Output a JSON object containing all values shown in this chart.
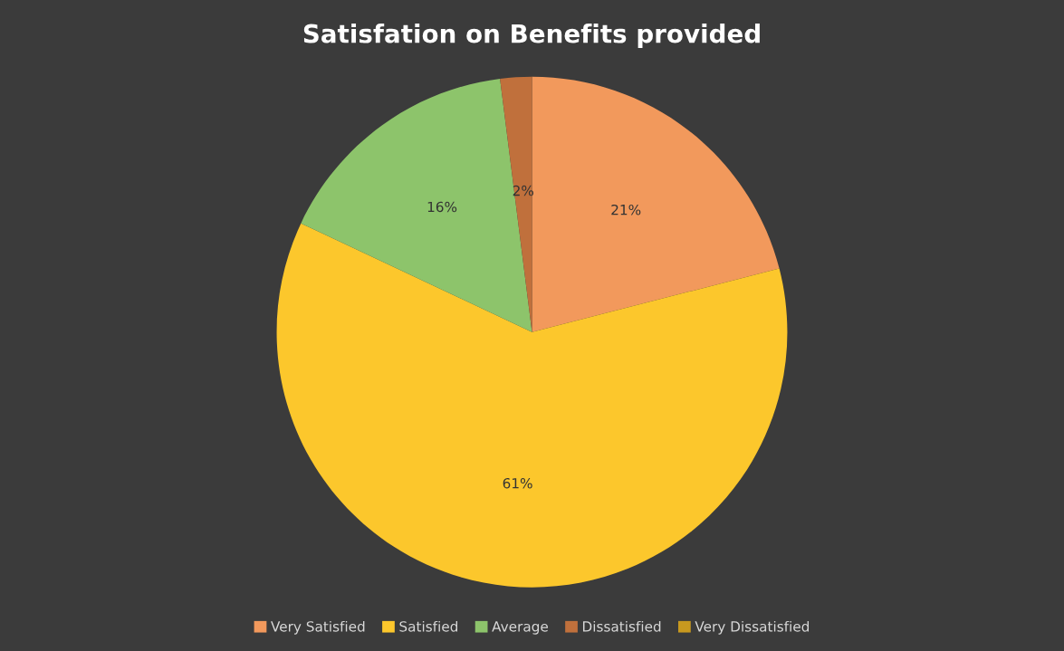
{
  "chart_data": {
    "type": "pie",
    "title": "Satisfation on Benefits provided",
    "categories": [
      "Very Satisfied",
      "Satisfied",
      "Average",
      "Dissatisfied",
      "Very Dissatisfied"
    ],
    "values": [
      21,
      61,
      16,
      2,
      0
    ],
    "value_labels": [
      "21%",
      "61%",
      "16%",
      "2%",
      null
    ],
    "colors": [
      "#f2995c",
      "#fcc72c",
      "#8dc46b",
      "#c0703c",
      "#c8991f"
    ],
    "legend": "bottom"
  }
}
